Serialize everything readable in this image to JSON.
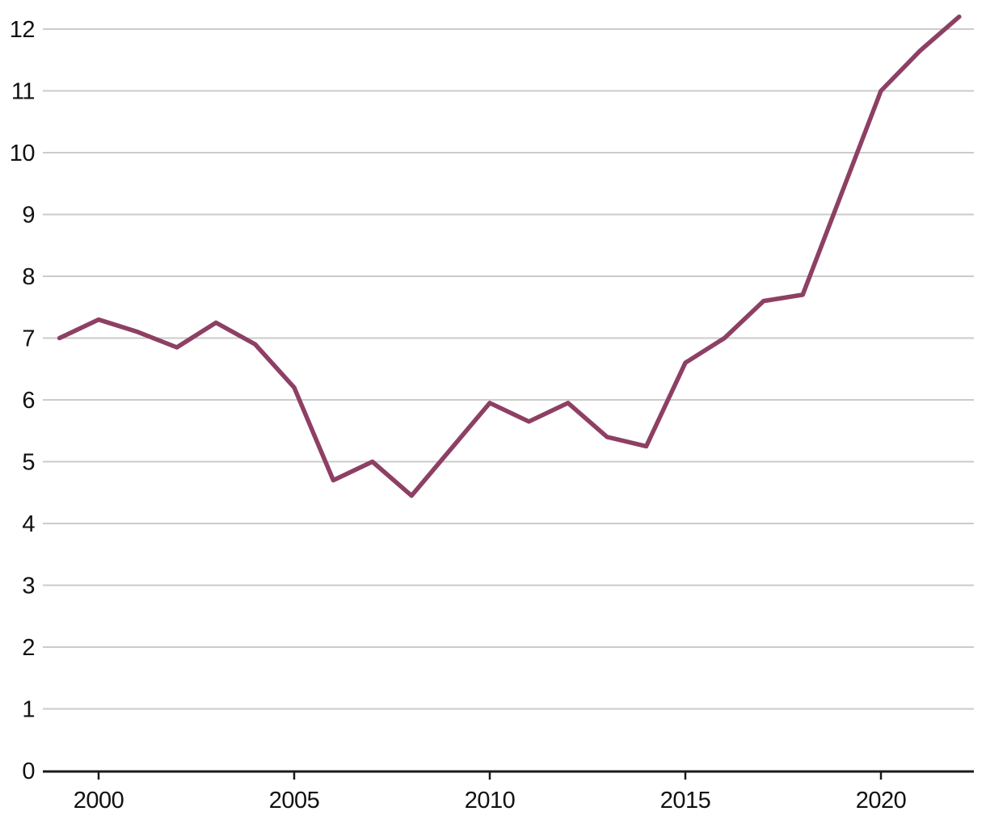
{
  "chart_data": {
    "type": "line",
    "title": "",
    "xlabel": "",
    "ylabel": "",
    "x": [
      1999,
      2000,
      2001,
      2002,
      2003,
      2004,
      2005,
      2006,
      2007,
      2008,
      2009,
      2010,
      2011,
      2012,
      2013,
      2014,
      2015,
      2016,
      2017,
      2018,
      2019,
      2020,
      2021,
      2022
    ],
    "series": [
      {
        "name": "series-1",
        "values": [
          7.0,
          7.3,
          7.1,
          6.85,
          7.25,
          6.9,
          6.2,
          4.7,
          5.0,
          4.45,
          5.2,
          5.95,
          5.65,
          5.95,
          5.4,
          5.25,
          6.6,
          7.0,
          7.6,
          7.7,
          9.35,
          11.0,
          11.65,
          12.2
        ]
      }
    ],
    "x_tick_labels": [
      "2000",
      "2005",
      "2010",
      "2015",
      "2020"
    ],
    "x_tick_years": [
      2000,
      2005,
      2010,
      2015,
      2020
    ],
    "y_tick_labels": [
      "0",
      "1",
      "2",
      "3",
      "4",
      "5",
      "6",
      "7",
      "8",
      "9",
      "10",
      "11",
      "12"
    ],
    "y_tick_values": [
      0,
      1,
      2,
      3,
      4,
      5,
      6,
      7,
      8,
      9,
      10,
      11,
      12
    ],
    "xlim": [
      1999,
      2022.5
    ],
    "ylim": [
      0,
      12.5
    ],
    "grid": "horizontal",
    "legend": "none",
    "colors": {
      "line": "#8d4063",
      "grid": "#cbcbcb",
      "axis": "#1a1a1a",
      "label": "#111111",
      "background": "#ffffff"
    }
  }
}
